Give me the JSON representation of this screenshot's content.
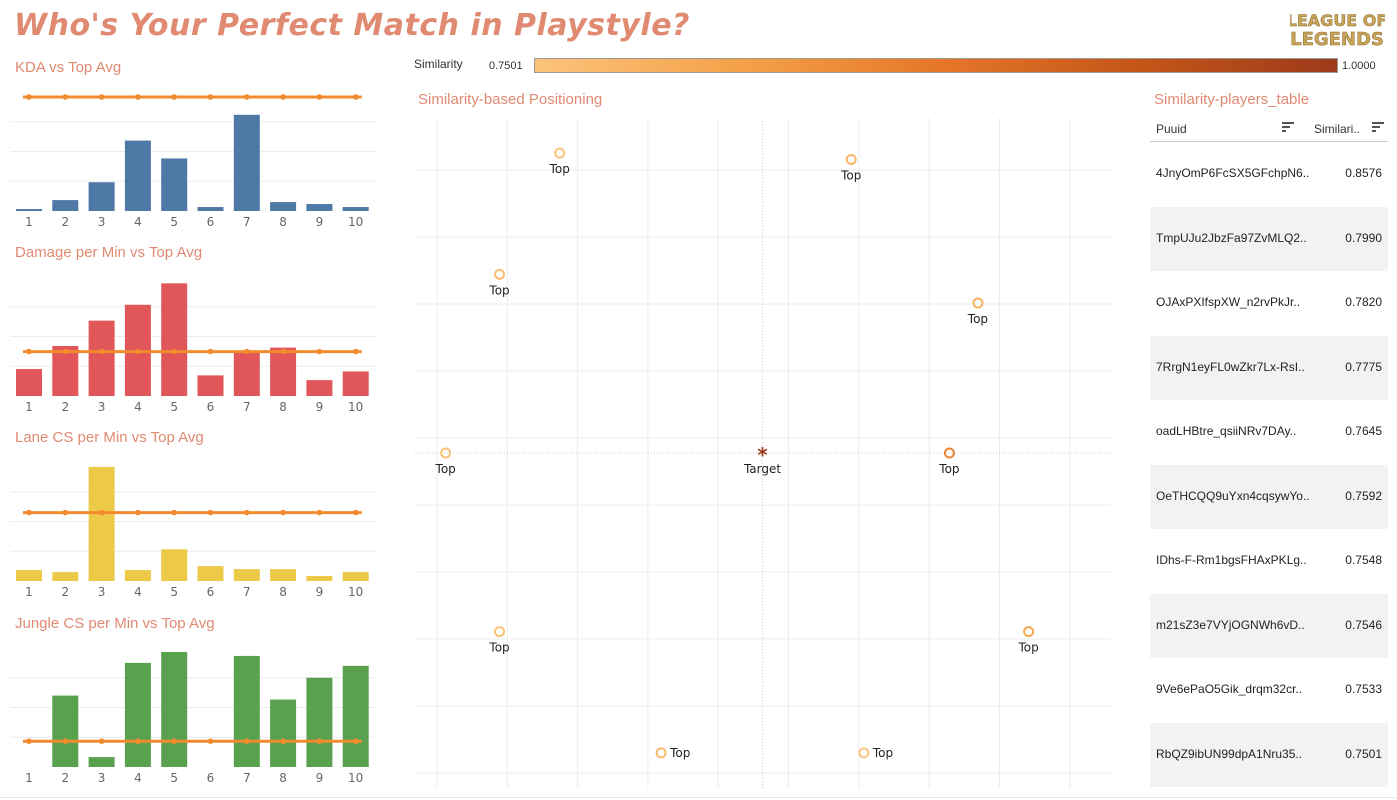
{
  "page": {
    "title": "Who's Your Perfect Match in Playstyle?",
    "logo_text": [
      "LEAGUE OF",
      "LEGENDS"
    ]
  },
  "colors": {
    "accent": "#e08a72",
    "avg_line": "#f28b2e",
    "kda": "#4e79a7",
    "damage": "#e15759",
    "lane": "#edc948",
    "jungle": "#59a14f",
    "target": "#9c3a1b"
  },
  "legend": {
    "label": "Similarity",
    "min": "0.7501",
    "max": "1.0000"
  },
  "bar_sections": [
    {
      "title": "KDA vs Top Avg",
      "color": "#4e79a7"
    },
    {
      "title": "Damage per Min vs Top Avg",
      "color": "#e15759"
    },
    {
      "title": "Lane CS per Min vs Top Avg",
      "color": "#edc948"
    },
    {
      "title": "Jungle CS per Min vs Top Avg",
      "color": "#59a14f"
    }
  ],
  "scatter": {
    "title": "Similarity-based Positioning"
  },
  "table": {
    "title": "Similarity-players_table",
    "headers": {
      "puuid": "Puuid",
      "similarity": "Similari.."
    },
    "rows": [
      {
        "puuid": "4JnyOmP6FcSX5GFchpN6..",
        "similarity": "0.8576"
      },
      {
        "puuid": "TmpUJu2JbzFa97ZvMLQ2..",
        "similarity": "0.7990"
      },
      {
        "puuid": "OJAxPXIfspXW_n2rvPkJr..",
        "similarity": "0.7820"
      },
      {
        "puuid": "7RrgN1eyFL0wZkr7Lx-RsI..",
        "similarity": "0.7775"
      },
      {
        "puuid": "oadLHBtre_qsiiNRv7DAy..",
        "similarity": "0.7645"
      },
      {
        "puuid": "OeTHCQQ9uYxn4cqsywYo..",
        "similarity": "0.7592"
      },
      {
        "puuid": "IDhs-F-Rm1bgsFHAxPKLg..",
        "similarity": "0.7548"
      },
      {
        "puuid": "m21sZ3e7VYjOGNWh6vD..",
        "similarity": "0.7546"
      },
      {
        "puuid": "9Ve6ePaO5Gik_drqm32cr..",
        "similarity": "0.7533"
      },
      {
        "puuid": "RbQZ9ibUN99dpA1Nru35..",
        "similarity": "0.7501"
      }
    ]
  },
  "chart_data": [
    {
      "type": "bar",
      "title": "KDA vs Top Avg",
      "categories": [
        "1",
        "2",
        "3",
        "4",
        "5",
        "6",
        "7",
        "8",
        "9",
        "10"
      ],
      "values": [
        0.2,
        1.1,
        2.9,
        7.1,
        5.3,
        0.4,
        9.7,
        0.9,
        0.7,
        0.4
      ],
      "avg": 11.5,
      "ylim": [
        0,
        12
      ]
    },
    {
      "type": "bar",
      "title": "Damage per Min vs Top Avg",
      "categories": [
        "1",
        "2",
        "3",
        "4",
        "5",
        "6",
        "7",
        "8",
        "9",
        "10"
      ],
      "values": [
        3.4,
        6.3,
        9.5,
        11.5,
        14.2,
        2.6,
        5.7,
        6.1,
        2.0,
        3.1
      ],
      "avg": 5.6,
      "ylim": [
        0,
        15
      ]
    },
    {
      "type": "bar",
      "title": "Lane CS per Min vs Top Avg",
      "categories": [
        "1",
        "2",
        "3",
        "4",
        "5",
        "6",
        "7",
        "8",
        "9",
        "10"
      ],
      "values": [
        1.1,
        0.9,
        11.5,
        1.1,
        3.2,
        1.5,
        1.2,
        1.2,
        0.5,
        0.9
      ],
      "avg": 6.9,
      "ylim": [
        0,
        12
      ]
    },
    {
      "type": "bar",
      "title": "Jungle CS per Min vs Top Avg",
      "categories": [
        "1",
        "2",
        "3",
        "4",
        "5",
        "6",
        "7",
        "8",
        "9",
        "10"
      ],
      "values": [
        0,
        7.2,
        1.0,
        10.5,
        11.6,
        0,
        11.2,
        6.8,
        9.0,
        10.2
      ],
      "avg": 2.6,
      "ylim": [
        0,
        12
      ]
    },
    {
      "type": "scatter",
      "title": "Similarity-based Positioning",
      "points": [
        {
          "x": -0.64,
          "y": 0.94,
          "label": "Top",
          "similarity": 0.7546
        },
        {
          "x": -0.83,
          "y": 0.56,
          "label": "Top",
          "similarity": 0.7592
        },
        {
          "x": -1.0,
          "y": 0.0,
          "label": "Top",
          "similarity": 0.7533
        },
        {
          "x": -0.83,
          "y": -0.56,
          "label": "Top",
          "similarity": 0.7548
        },
        {
          "x": -0.32,
          "y": -0.94,
          "label": "Top",
          "similarity": 0.7645
        },
        {
          "x": 0.32,
          "y": -0.94,
          "label": "Top",
          "similarity": 0.7501
        },
        {
          "x": 0.28,
          "y": 0.92,
          "label": "Top",
          "similarity": 0.7775
        },
        {
          "x": 0.68,
          "y": 0.47,
          "label": "Top",
          "similarity": 0.782
        },
        {
          "x": 0.59,
          "y": 0.0,
          "label": "Top",
          "similarity": 0.8576
        },
        {
          "x": 0.84,
          "y": -0.56,
          "label": "Top",
          "similarity": 0.799
        }
      ],
      "target": {
        "x": 0,
        "y": 0,
        "label": "Target"
      },
      "xlim": [
        -1.1,
        1.1
      ],
      "ylim": [
        -1.05,
        1.05
      ]
    }
  ]
}
